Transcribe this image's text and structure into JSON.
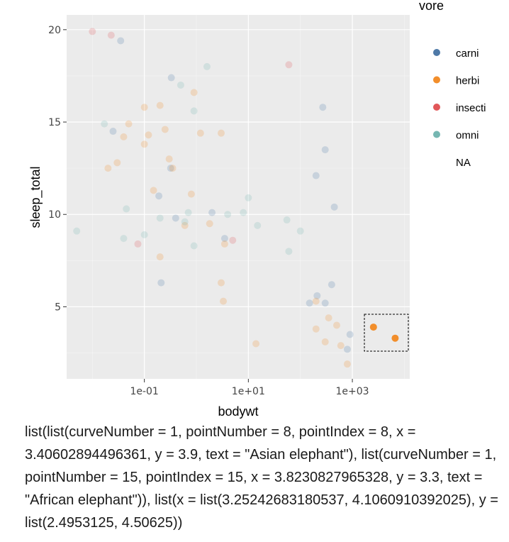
{
  "chart_data": {
    "type": "scatter",
    "xlabel": "bodywt",
    "ylabel": "sleep_total",
    "x_scale": "log10",
    "xlim": [
      0.0032,
      12700
    ],
    "ylim": [
      1.1,
      20.8
    ],
    "x_ticks": [
      {
        "value": 0.1,
        "label": "1e-01"
      },
      {
        "value": 10,
        "label": "1e+01"
      },
      {
        "value": 1000,
        "label": "1e+03"
      }
    ],
    "y_ticks": [
      {
        "value": 5,
        "label": "5"
      },
      {
        "value": 10,
        "label": "10"
      },
      {
        "value": 15,
        "label": "15"
      },
      {
        "value": 20,
        "label": "20"
      }
    ],
    "grid": true,
    "legend": {
      "title": "vore",
      "position": "right"
    },
    "selection_box": {
      "x": [
        1787.7,
        12764.6
      ],
      "y": [
        2.4953,
        4.50625
      ]
    },
    "series": [
      {
        "name": "carni",
        "color": "#4e79a7",
        "points": [
          [
            0.025,
            14.5
          ],
          [
            0.035,
            19.4
          ],
          [
            0.33,
            17.4
          ],
          [
            0.32,
            12.5
          ],
          [
            0.19,
            11.0
          ],
          [
            0.4,
            9.8
          ],
          [
            2.0,
            10.1
          ],
          [
            3.5,
            8.7
          ],
          [
            0.21,
            6.3
          ],
          [
            200,
            12.1
          ],
          [
            270,
            15.8
          ],
          [
            300,
            13.5
          ],
          [
            450,
            10.4
          ],
          [
            400,
            6.2
          ],
          [
            210,
            5.6
          ],
          [
            300,
            5.2
          ],
          [
            900,
            3.5
          ],
          [
            800,
            2.7
          ],
          [
            150,
            5.2
          ]
        ]
      },
      {
        "name": "herbi",
        "color": "#f28e2b",
        "points": [
          [
            0.02,
            12.5
          ],
          [
            0.03,
            12.8
          ],
          [
            0.04,
            14.2
          ],
          [
            0.05,
            14.9
          ],
          [
            0.1,
            13.8
          ],
          [
            0.1,
            15.8
          ],
          [
            0.12,
            14.3
          ],
          [
            0.2,
            15.9
          ],
          [
            0.25,
            14.6
          ],
          [
            0.15,
            11.3
          ],
          [
            0.3,
            13.0
          ],
          [
            0.35,
            12.5
          ],
          [
            0.9,
            16.6
          ],
          [
            1.2,
            14.4
          ],
          [
            3.0,
            14.4
          ],
          [
            0.8,
            11.1
          ],
          [
            0.6,
            9.4
          ],
          [
            1.8,
            9.5
          ],
          [
            3.5,
            8.4
          ],
          [
            0.2,
            7.7
          ],
          [
            3.0,
            6.3
          ],
          [
            3.3,
            5.3
          ],
          [
            14,
            3.0
          ],
          [
            200,
            5.3
          ],
          [
            200,
            3.8
          ],
          [
            300,
            3.1
          ],
          [
            350,
            4.4
          ],
          [
            500,
            4.0
          ],
          [
            600,
            2.9
          ],
          [
            800,
            1.9
          ],
          [
            2547,
            3.9
          ],
          [
            6654,
            3.3
          ]
        ]
      },
      {
        "name": "insecti",
        "color": "#e15759",
        "points": [
          [
            0.01,
            19.9
          ],
          [
            0.023,
            19.7
          ],
          [
            0.075,
            8.4
          ],
          [
            60,
            18.1
          ],
          [
            5.0,
            8.6
          ]
        ]
      },
      {
        "name": "omni",
        "color": "#76b7b2",
        "points": [
          [
            0.005,
            9.1
          ],
          [
            0.017,
            14.9
          ],
          [
            0.045,
            10.3
          ],
          [
            0.04,
            8.7
          ],
          [
            0.1,
            8.9
          ],
          [
            0.2,
            9.8
          ],
          [
            0.5,
            17.0
          ],
          [
            1.6,
            18.0
          ],
          [
            0.9,
            15.6
          ],
          [
            0.7,
            10.1
          ],
          [
            0.6,
            9.6
          ],
          [
            0.9,
            8.3
          ],
          [
            4.0,
            10.0
          ],
          [
            8.0,
            10.1
          ],
          [
            10.0,
            10.9
          ],
          [
            15.0,
            9.4
          ],
          [
            55.0,
            9.7
          ],
          [
            60.0,
            8.0
          ],
          [
            100.0,
            9.1
          ]
        ]
      }
    ],
    "selected_points": [
      {
        "series": "herbi",
        "x": 2547,
        "y": 3.9,
        "text": "Asian elephant"
      },
      {
        "series": "herbi",
        "x": 6654,
        "y": 3.3,
        "text": "African elephant"
      }
    ]
  },
  "legend_items": [
    {
      "label": "carni",
      "color": "#4e79a7"
    },
    {
      "label": "herbi",
      "color": "#f28e2b"
    },
    {
      "label": "insecti",
      "color": "#e15759"
    },
    {
      "label": "omni",
      "color": "#76b7b2"
    },
    {
      "label": "NA",
      "color": ""
    }
  ],
  "selection_output": "list(list(curveNumber = 1, pointNumber = 8, pointIndex = 8, x = 3.40602894496361, y = 3.9, text = \"Asian elephant\"), list(curveNumber = 1, pointNumber = 15, pointIndex = 15, x = 3.8230827965328, y = 3.3, text = \"African elephant\")), list(x = list(3.25242683180537, 4.1060910392025), y = list(2.4953125, 4.50625))"
}
